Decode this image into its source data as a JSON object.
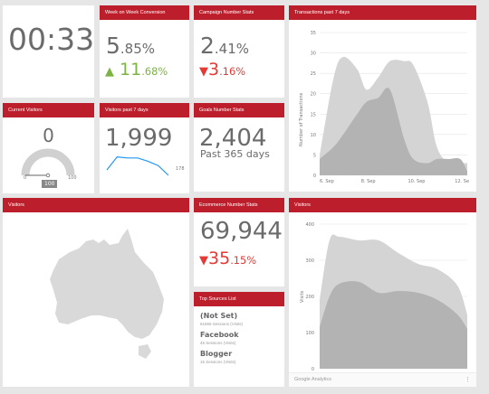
{
  "clock": {
    "time": "00:33"
  },
  "week_conversion": {
    "title": "Week on Week Conversion",
    "value_main": "5",
    "value_dec": ".85%",
    "change_main": "11",
    "change_dec": ".68%",
    "change_arrow": "▲"
  },
  "campaign_stats": {
    "title": "Campaign Number Stats",
    "value_main": "2",
    "value_dec": ".41%",
    "change_main": "3",
    "change_dec": ".16%",
    "change_arrow": "▼"
  },
  "transactions": {
    "title": "Transactions past 7 days",
    "ylabel": "Number of Transactions",
    "yticks": [
      "35",
      "30",
      "25",
      "20",
      "15",
      "10",
      "5",
      "0"
    ],
    "xticks": [
      "6. Sep",
      "8. Sep",
      "10. Sep",
      "12. Se"
    ]
  },
  "current_visitors": {
    "title": "Current Visitors",
    "value": "0",
    "gauge_min": "0",
    "gauge_max": "100",
    "gauge_marker": "100"
  },
  "visitors_7": {
    "title": "Visitors past 7 days",
    "value": "1,999",
    "last_point": "178"
  },
  "goals": {
    "title": "Goals Number Stats",
    "value": "2,404",
    "sub": "Past 365 days"
  },
  "visitors_map": {
    "title": "Visitors"
  },
  "ecommerce": {
    "title": "Ecommerce Number Stats",
    "value": "69,944",
    "change_main": "35",
    "change_dec": ".15%",
    "change_arrow": "▼"
  },
  "top_sources": {
    "title": "Top Sources List",
    "items": [
      {
        "name": "(Not Set)",
        "sub": "61665 Sessions (Visits)"
      },
      {
        "name": "Facebook",
        "sub": "45 Sessions (Visits)"
      },
      {
        "name": "Blogger",
        "sub": "15 Sessions (Visits)"
      }
    ]
  },
  "visitors_chart": {
    "title": "Visitors",
    "ylabel": "Visits",
    "yticks": [
      "400",
      "300",
      "200",
      "100",
      "0"
    ],
    "footer": "Google Analytics",
    "footer_icon": "more-vert-icon"
  },
  "colors": {
    "header": "#bd1e2b",
    "up": "#7cb342",
    "down": "#e53935"
  },
  "chart_data": [
    {
      "type": "area",
      "title": "Transactions past 7 days",
      "ylabel": "Number of Transactions",
      "ylim": [
        0,
        35
      ],
      "xticks": [
        "6. Sep",
        "8. Sep",
        "10. Sep",
        "12. Se"
      ],
      "series": [
        {
          "x": [
            0,
            0.6,
            1,
            1.6,
            2,
            2.5,
            3,
            3.6,
            4,
            4.6,
            5,
            5.5,
            6,
            6.3
          ],
          "values": [
            5,
            24,
            29,
            26,
            21,
            24,
            28,
            28,
            27,
            18,
            7,
            3,
            3,
            3
          ]
        },
        {
          "x": [
            0,
            0.6,
            1,
            1.6,
            2,
            2.5,
            3,
            3.6,
            4,
            4.6,
            5,
            5.5,
            6,
            6.3
          ],
          "values": [
            4,
            7,
            10,
            15,
            18,
            19,
            21,
            9,
            4,
            3,
            4,
            4,
            4,
            1
          ]
        }
      ]
    },
    {
      "type": "line",
      "title": "Visitors past 7 days",
      "values": [
        10,
        22,
        21,
        21,
        18,
        14,
        5
      ]
    },
    {
      "type": "area",
      "title": "Visitors",
      "ylabel": "Visits",
      "ylim": [
        0,
        400
      ],
      "series": [
        {
          "x": [
            0,
            0.5,
            1,
            2,
            3,
            4,
            5,
            6,
            7,
            7.5
          ],
          "values": [
            190,
            355,
            365,
            355,
            355,
            320,
            290,
            275,
            230,
            150
          ]
        },
        {
          "x": [
            0,
            0.5,
            1,
            2,
            3,
            4,
            5,
            6,
            7,
            7.5
          ],
          "values": [
            115,
            200,
            235,
            240,
            210,
            215,
            210,
            190,
            150,
            110
          ]
        }
      ]
    }
  ]
}
